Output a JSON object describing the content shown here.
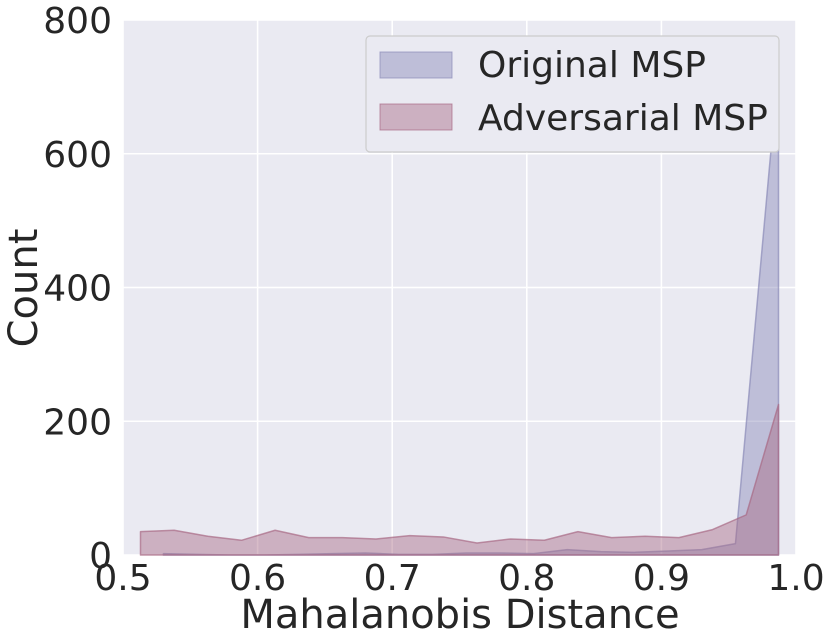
{
  "chart_data": {
    "type": "area",
    "xlabel": "Mahalanobis Distance",
    "ylabel": "Count",
    "xlim": [
      0.5,
      1.0
    ],
    "ylim": [
      0,
      800
    ],
    "x_ticks": [
      "0.5",
      "0.6",
      "0.7",
      "0.8",
      "0.9",
      "1.0"
    ],
    "y_ticks": [
      "0",
      "200",
      "400",
      "600",
      "800"
    ],
    "grid": true,
    "legend_position": "top-right",
    "background_color": "#eaeaf2",
    "series": [
      {
        "name": "Original MSP",
        "color": "#8a8ab8",
        "x": [
          0.53,
          0.555,
          0.58,
          0.605,
          0.63,
          0.655,
          0.68,
          0.705,
          0.73,
          0.755,
          0.78,
          0.805,
          0.83,
          0.855,
          0.88,
          0.905,
          0.93,
          0.955,
          0.987
        ],
        "values": [
          2,
          1,
          0,
          0,
          1,
          2,
          3,
          1,
          1,
          3,
          3,
          2,
          8,
          5,
          4,
          6,
          8,
          17,
          730
        ]
      },
      {
        "name": "Adversarial MSP",
        "color": "#a86a85",
        "x": [
          0.513,
          0.538,
          0.563,
          0.588,
          0.613,
          0.638,
          0.663,
          0.688,
          0.713,
          0.738,
          0.763,
          0.788,
          0.813,
          0.838,
          0.863,
          0.888,
          0.913,
          0.938,
          0.963,
          0.987
        ],
        "values": [
          35,
          37,
          28,
          22,
          37,
          26,
          26,
          24,
          29,
          27,
          18,
          24,
          22,
          35,
          26,
          28,
          26,
          38,
          60,
          225
        ]
      }
    ]
  }
}
